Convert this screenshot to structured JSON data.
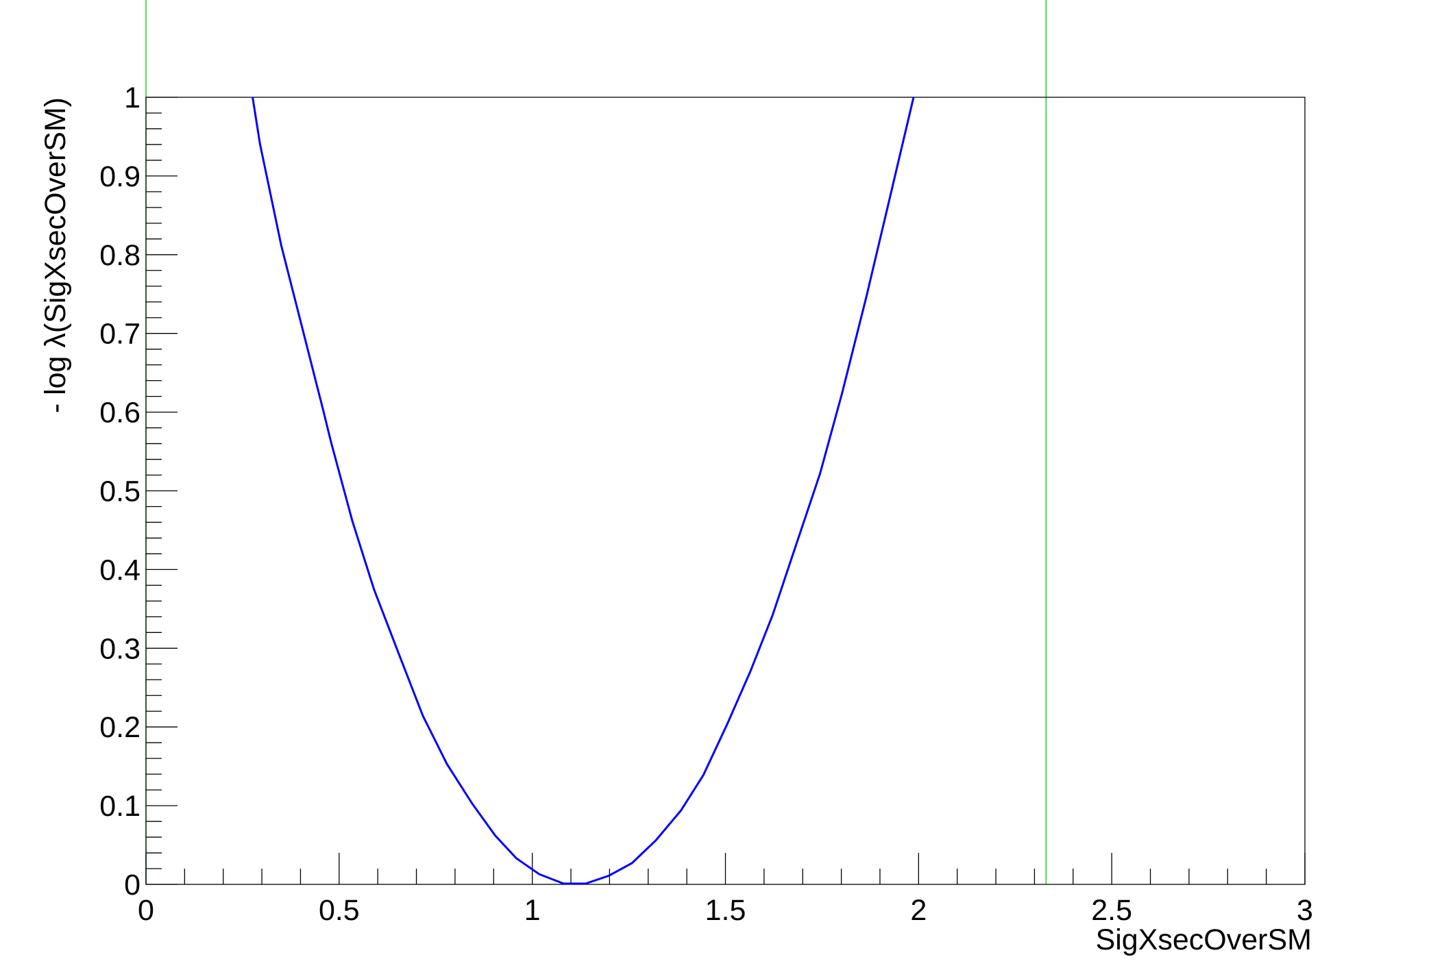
{
  "chart_data": {
    "type": "line",
    "title": "",
    "xlabel": "SigXsecOverSM",
    "ylabel": "- log λ(SigXsecOverSM)",
    "xlim": [
      0,
      3
    ],
    "ylim": [
      0,
      1
    ],
    "grid": false,
    "x_ticks": [
      "0",
      "0.5",
      "1",
      "1.5",
      "2",
      "2.5",
      "3"
    ],
    "y_ticks": [
      "0",
      "0.1",
      "0.2",
      "0.3",
      "0.4",
      "0.5",
      "0.6",
      "0.7",
      "0.8",
      "0.9",
      "1"
    ],
    "series": [
      {
        "color": "#0000ff",
        "points": [
          [
            0.276,
            1.0
          ],
          [
            0.295,
            0.941
          ],
          [
            0.35,
            0.812
          ],
          [
            0.405,
            0.706
          ],
          [
            0.46,
            0.6
          ],
          [
            0.479,
            0.562
          ],
          [
            0.534,
            0.462
          ],
          [
            0.59,
            0.375
          ],
          [
            0.659,
            0.287
          ],
          [
            0.717,
            0.214
          ],
          [
            0.779,
            0.153
          ],
          [
            0.844,
            0.103
          ],
          [
            0.904,
            0.062
          ],
          [
            0.959,
            0.033
          ],
          [
            1.018,
            0.013
          ],
          [
            1.081,
            0.001
          ],
          [
            1.138,
            0.001
          ],
          [
            1.198,
            0.011
          ],
          [
            1.258,
            0.027
          ],
          [
            1.32,
            0.056
          ],
          [
            1.385,
            0.094
          ],
          [
            1.443,
            0.139
          ],
          [
            1.505,
            0.204
          ],
          [
            1.565,
            0.271
          ],
          [
            1.622,
            0.342
          ],
          [
            1.682,
            0.43
          ],
          [
            1.745,
            0.522
          ],
          [
            1.802,
            0.624
          ],
          [
            1.864,
            0.745
          ],
          [
            1.922,
            0.865
          ],
          [
            1.987,
            1.0
          ]
        ]
      }
    ],
    "vertical_lines": [
      {
        "x": 0,
        "color": "#00cc00"
      },
      {
        "x": 2.33,
        "color": "#00cc00"
      }
    ]
  }
}
